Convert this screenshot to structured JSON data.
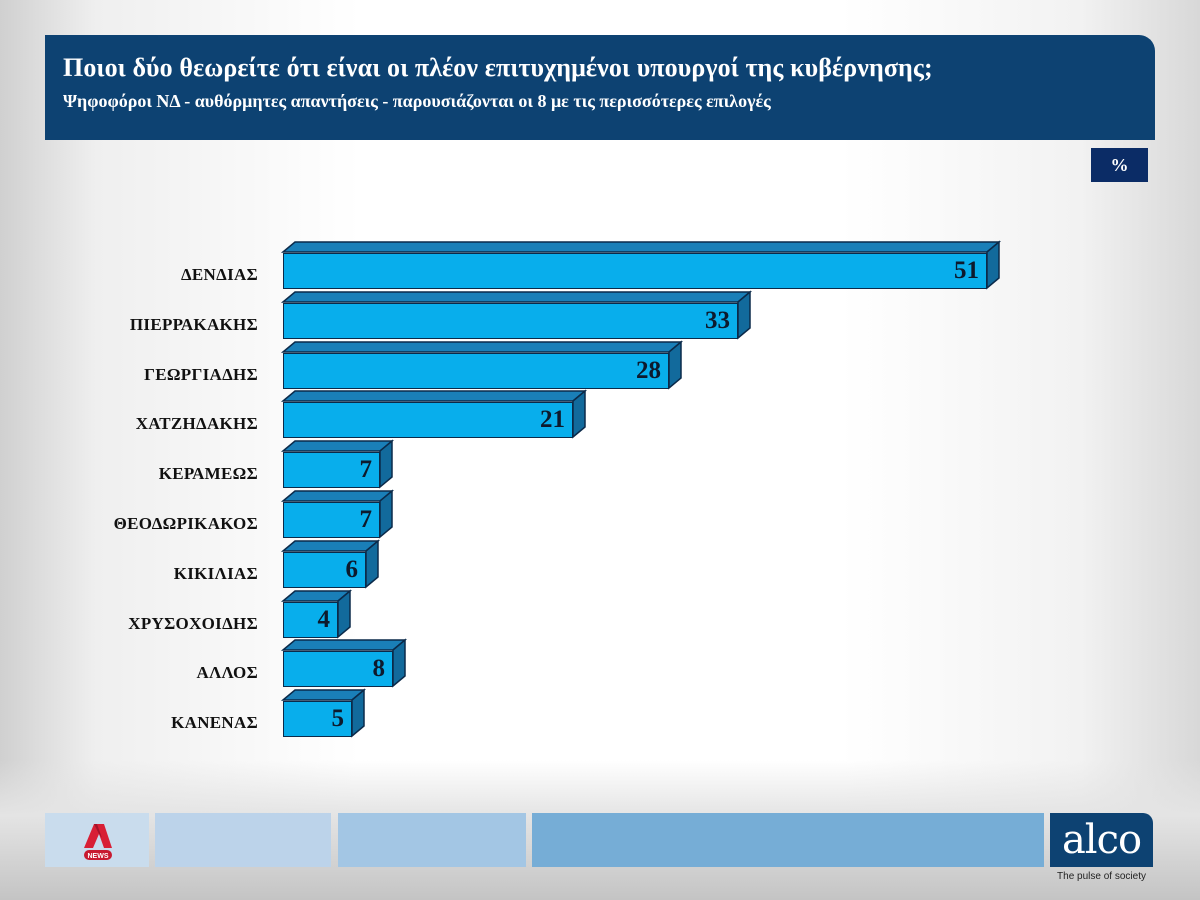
{
  "header": {
    "title": "Ποιοι δύο θεωρείτε ότι είναι οι πλέον επιτυχημένοι υπουργοί της κυβέρνησης;",
    "subtitle": "Ψηφοφόροι ΝΔ - αυθόρμητες απαντήσεις - παρουσιάζονται οι 8 με τις περισσότερες επιλογές"
  },
  "unit_badge": "%",
  "colors": {
    "header_bg": "#0d4272",
    "bar_front": "#08aeec",
    "bar_top": "#1a7fb8",
    "bar_side": "#126a9c",
    "bar_outline": "#0b2a4a",
    "badge_bg": "#0b2c66"
  },
  "chart_data": {
    "type": "bar",
    "orientation": "horizontal",
    "style": "3d",
    "title": "Ποιοι δύο θεωρείτε ότι είναι οι πλέον επιτυχημένοι υπουργοί της κυβέρνησης;",
    "subtitle": "Ψηφοφόροι ΝΔ - αυθόρμητες απαντήσεις - παρουσιάζονται οι 8 με τις περισσότερες επιλογές",
    "unit": "%",
    "categories": [
      "ΔΕΝΔΙΑΣ",
      "ΠΙΕΡΡΑΚΑΚΗΣ",
      "ΓΕΩΡΓΙΑΔΗΣ",
      "ΧΑΤΖΗΔΑΚΗΣ",
      "ΚΕΡΑΜΕΩΣ",
      "ΘΕΟΔΩΡΙΚΑΚΟΣ",
      "ΚΙΚΙΛΙΑΣ",
      "ΧΡΥΣΟΧΟΙΔΗΣ",
      "ΑΛΛΟΣ",
      "ΚΑΝΕΝΑΣ"
    ],
    "values": [
      51,
      33,
      28,
      21,
      7,
      7,
      6,
      4,
      8,
      5
    ],
    "xlabel": "",
    "ylabel": "",
    "grid": false,
    "legend": null,
    "data_labels": true
  },
  "footer": {
    "left_logo": "A NEWS",
    "left_logo_badge": "NEWS",
    "brand": "alco",
    "tagline": "The pulse of society"
  }
}
